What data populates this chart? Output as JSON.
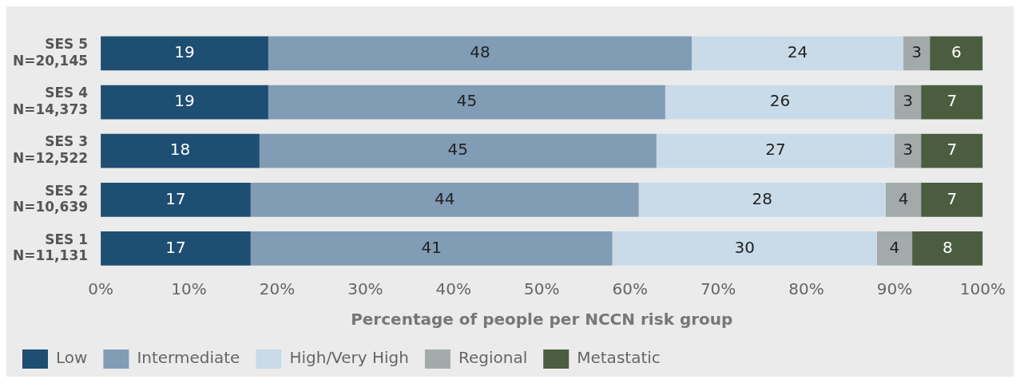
{
  "chart_data": {
    "type": "bar",
    "orientation": "horizontal",
    "stacked": true,
    "xlabel": "Percentage of people per NCCN risk group",
    "categories": [
      "SES 5\nN=20,145",
      "SES 4\nN=14,373",
      "SES 3\nN=12,522",
      "SES 2\nN=10,639",
      "SES 1\nN=11,131"
    ],
    "series": [
      {
        "name": "Low",
        "color": "#1f4e73",
        "values": [
          19,
          19,
          18,
          17,
          17
        ]
      },
      {
        "name": "Intermediate",
        "color": "#819cb5",
        "values": [
          48,
          45,
          45,
          44,
          41
        ]
      },
      {
        "name": "High/Very High",
        "color": "#c9dbe8",
        "values": [
          24,
          26,
          27,
          28,
          30
        ]
      },
      {
        "name": "Regional",
        "color": "#a2aaaa",
        "values": [
          3,
          3,
          3,
          4,
          4
        ]
      },
      {
        "name": "Metastatic",
        "color": "#4a5e3f",
        "values": [
          6,
          7,
          7,
          7,
          8
        ]
      }
    ],
    "xlim": [
      0,
      100
    ],
    "xticks": [
      {
        "value": 0,
        "label": "0%"
      },
      {
        "value": 10,
        "label": "10%"
      },
      {
        "value": 20,
        "label": "20%"
      },
      {
        "value": 30,
        "label": "30%"
      },
      {
        "value": 40,
        "label": "40%"
      },
      {
        "value": 50,
        "label": "50%"
      },
      {
        "value": 60,
        "label": "60%"
      },
      {
        "value": 70,
        "label": "70%"
      },
      {
        "value": 80,
        "label": "80%"
      },
      {
        "value": 90,
        "label": "90%"
      },
      {
        "value": 100,
        "label": "100%"
      }
    ],
    "data_labels": true,
    "grid": false,
    "legend": "bottom left"
  }
}
